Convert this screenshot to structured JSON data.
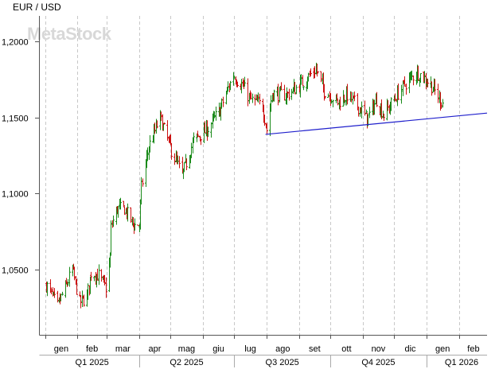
{
  "chart_data": {
    "type": "ohlc",
    "title": "EUR / USD",
    "watermark": "MetaStock",
    "y_ticks": [
      "1,2000",
      "1,1500",
      "1,1000",
      "1,0500"
    ],
    "y_tick_values": [
      1.2,
      1.15,
      1.1,
      1.05
    ],
    "ylim": [
      1.007,
      1.217
    ],
    "month_labels": [
      "gen",
      "feb",
      "mar",
      "apr",
      "mag",
      "giu",
      "lug",
      "ago",
      "set",
      "ott",
      "nov",
      "dic",
      "gen",
      "feb"
    ],
    "quarter_labels": [
      "Q1 2025",
      "Q2 2025",
      "Q3 2025",
      "Q4 2025",
      "Q1 2026"
    ],
    "grid": "vertical dashed at month boundaries",
    "colors": {
      "up": "#1a8a1a",
      "down": "#cc1111",
      "trendline": "#1f1fcc",
      "grid": "#c8c8c8",
      "watermark": "#d8d8d8"
    },
    "series": [
      {
        "name": "",
        "type": "daily ohlc bars",
        "anchor_closes": [
          [
            "2025-01-02",
            1.04
          ],
          [
            "2025-01-13",
            1.026
          ],
          [
            "2025-01-15",
            1.03
          ],
          [
            "2025-01-22",
            1.041
          ],
          [
            "2025-01-27",
            1.05
          ],
          [
            "2025-02-03",
            1.028
          ],
          [
            "2025-02-10",
            1.032
          ],
          [
            "2025-02-14",
            1.048
          ],
          [
            "2025-02-21",
            1.046
          ],
          [
            "2025-02-28",
            1.038
          ],
          [
            "2025-03-04",
            1.058
          ],
          [
            "2025-03-05",
            1.078
          ],
          [
            "2025-03-11",
            1.09
          ],
          [
            "2025-03-18",
            1.09
          ],
          [
            "2025-03-27",
            1.079
          ],
          [
            "2025-04-01",
            1.08
          ],
          [
            "2025-04-03",
            1.104
          ],
          [
            "2025-04-10",
            1.131
          ],
          [
            "2025-04-21",
            1.15
          ],
          [
            "2025-04-30",
            1.132
          ],
          [
            "2025-05-12",
            1.112
          ],
          [
            "2025-05-23",
            1.135
          ],
          [
            "2025-06-05",
            1.142
          ],
          [
            "2025-06-17",
            1.155
          ],
          [
            "2025-06-30",
            1.178
          ],
          [
            "2025-07-10",
            1.17
          ],
          [
            "2025-07-16",
            1.162
          ],
          [
            "2025-07-28",
            1.158
          ],
          [
            "2025-08-01",
            1.142
          ],
          [
            "2025-08-06",
            1.166
          ],
          [
            "2025-08-20",
            1.165
          ],
          [
            "2025-09-01",
            1.171
          ],
          [
            "2025-09-17",
            1.182
          ],
          [
            "2025-09-25",
            1.168
          ],
          [
            "2025-10-08",
            1.16
          ],
          [
            "2025-10-17",
            1.165
          ],
          [
            "2025-10-31",
            1.155
          ],
          [
            "2025-11-05",
            1.149
          ],
          [
            "2025-11-14",
            1.162
          ],
          [
            "2025-11-21",
            1.152
          ],
          [
            "2025-12-03",
            1.164
          ],
          [
            "2025-12-11",
            1.172
          ],
          [
            "2025-12-23",
            1.18
          ],
          [
            "2026-01-05",
            1.172
          ],
          [
            "2026-01-12",
            1.164
          ],
          [
            "2026-01-16",
            1.16
          ]
        ]
      },
      {
        "name": "",
        "type": "trendline",
        "points": [
          [
            "2025-07-31",
            1.139
          ],
          [
            "2026-02-28",
            1.153
          ]
        ]
      }
    ]
  }
}
